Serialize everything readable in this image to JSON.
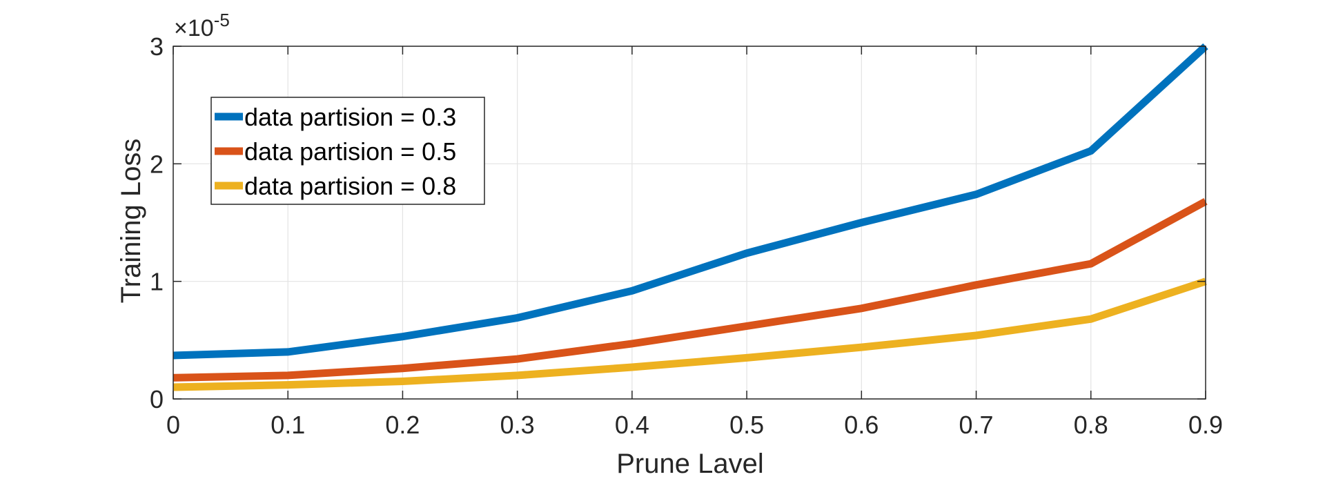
{
  "chart_data": {
    "type": "line",
    "x": [
      0,
      0.1,
      0.2,
      0.3,
      0.4,
      0.5,
      0.6,
      0.7,
      0.8,
      0.9
    ],
    "x_tick_labels": [
      "0",
      "0.1",
      "0.2",
      "0.3",
      "0.4",
      "0.5",
      "0.6",
      "0.7",
      "0.8",
      "0.9"
    ],
    "y_tick_labels": [
      "0",
      "1",
      "2",
      "3"
    ],
    "y_ticks": [
      0,
      1,
      2,
      3
    ],
    "xlim": [
      0,
      0.9
    ],
    "ylim": [
      0,
      3
    ],
    "y_multiplier_base": "×10",
    "y_multiplier_exponent": "-5",
    "xlabel": "Prune Lavel",
    "ylabel": "Training Loss",
    "grid": true,
    "legend_position": "upper-left",
    "series": [
      {
        "name": "data partision = 0.3",
        "color": "#0072BD",
        "values": [
          0.37,
          0.4,
          0.53,
          0.69,
          0.92,
          1.24,
          1.5,
          1.74,
          2.11,
          3.0
        ]
      },
      {
        "name": "data partision = 0.5",
        "color": "#D95319",
        "values": [
          0.18,
          0.2,
          0.26,
          0.34,
          0.47,
          0.62,
          0.77,
          0.97,
          1.15,
          1.68
        ]
      },
      {
        "name": "data partision = 0.8",
        "color": "#EDB120",
        "values": [
          0.1,
          0.12,
          0.15,
          0.2,
          0.27,
          0.35,
          0.44,
          0.54,
          0.68,
          1.0
        ]
      }
    ]
  }
}
